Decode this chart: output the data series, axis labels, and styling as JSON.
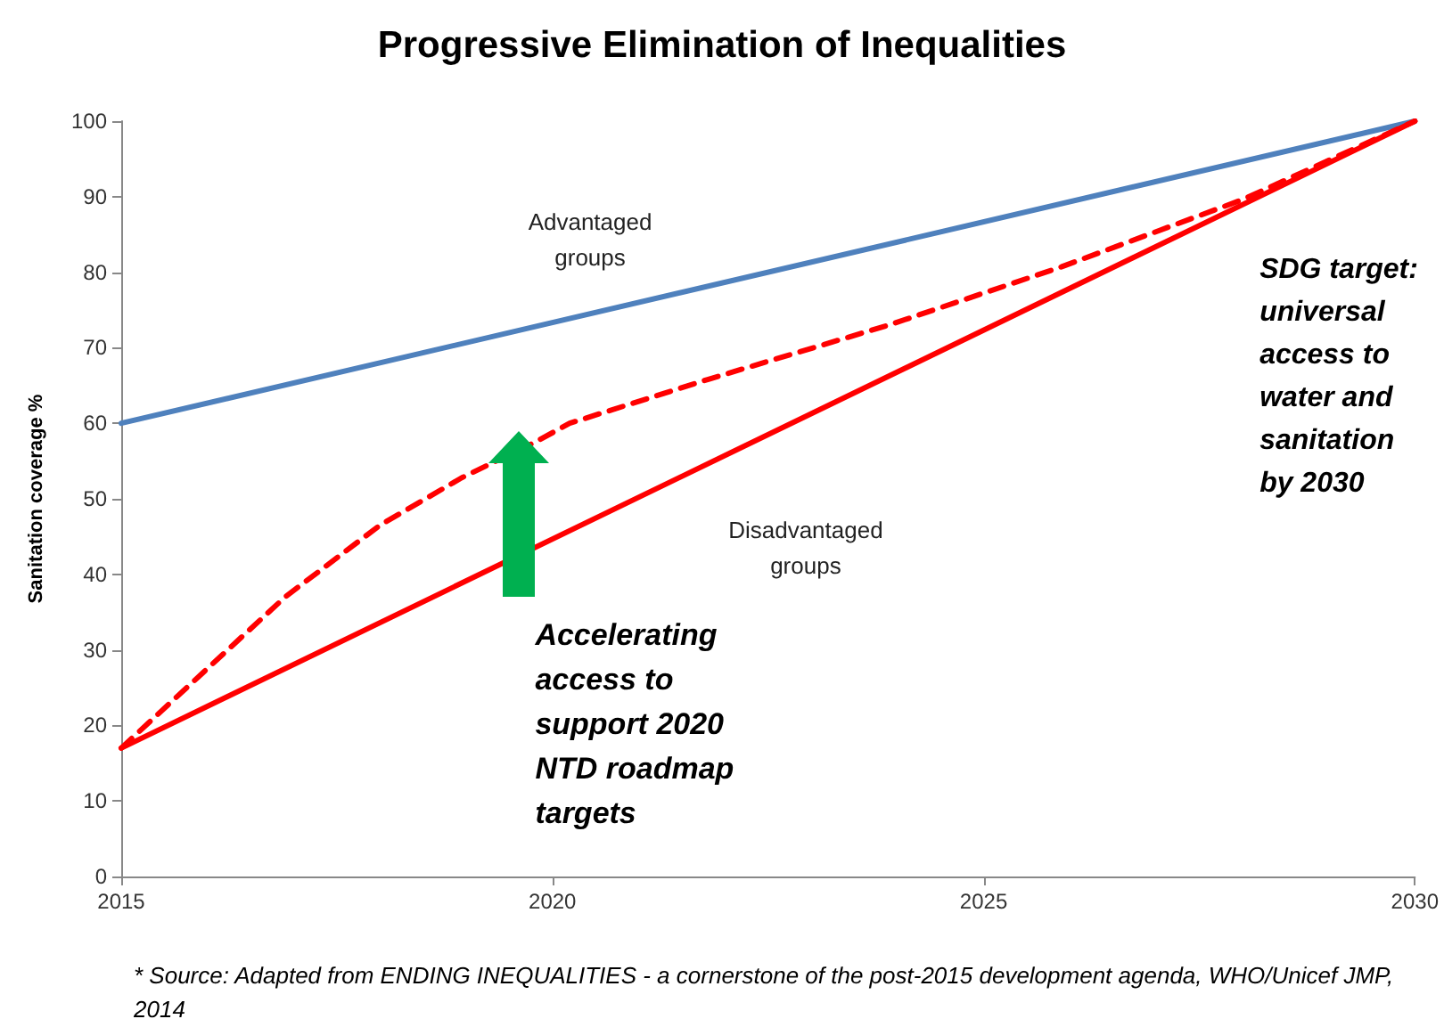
{
  "chart_data": {
    "type": "line",
    "title": "Progressive Elimination of Inequalities",
    "ylabel": "Sanitation coverage %",
    "xlim": [
      2015,
      2030
    ],
    "xticks": [
      2015,
      2020,
      2025,
      2030
    ],
    "ylim": [
      0,
      100
    ],
    "yticks": [
      0,
      10,
      20,
      30,
      40,
      50,
      60,
      70,
      80,
      90,
      100
    ],
    "grid": false,
    "legend": false,
    "marker": "none",
    "series": [
      {
        "name": "Advantaged groups",
        "color": "#4f81bd",
        "x": [
          2015,
          2030
        ],
        "values": [
          60,
          100
        ],
        "line_style": "solid"
      },
      {
        "name": "Disadvantaged groups",
        "color": "#ff0000",
        "x": [
          2015,
          2030
        ],
        "values": [
          17,
          100
        ],
        "line_style": "solid"
      },
      {
        "color": "#ff0000",
        "x": [
          2015,
          2016.9,
          2018,
          2018.95,
          2019.8,
          2020.2,
          2021.8,
          2023.9,
          2025.9,
          2028,
          2030
        ],
        "values": [
          17,
          37,
          46.5,
          52.8,
          57.5,
          60,
          65.8,
          73,
          80.7,
          89.6,
          100
        ],
        "line_style": "dashed"
      }
    ],
    "annotations": [
      "Accelerating access to support 2020 NTD roadmap targets",
      "SDG target: universal access to water and sanitation by 2030",
      "* Source:  Adapted from ENDING INEQUALITIES - a cornerstone  of the post-2015  development agenda, WHO/Unicef JMP, 2014"
    ]
  }
}
